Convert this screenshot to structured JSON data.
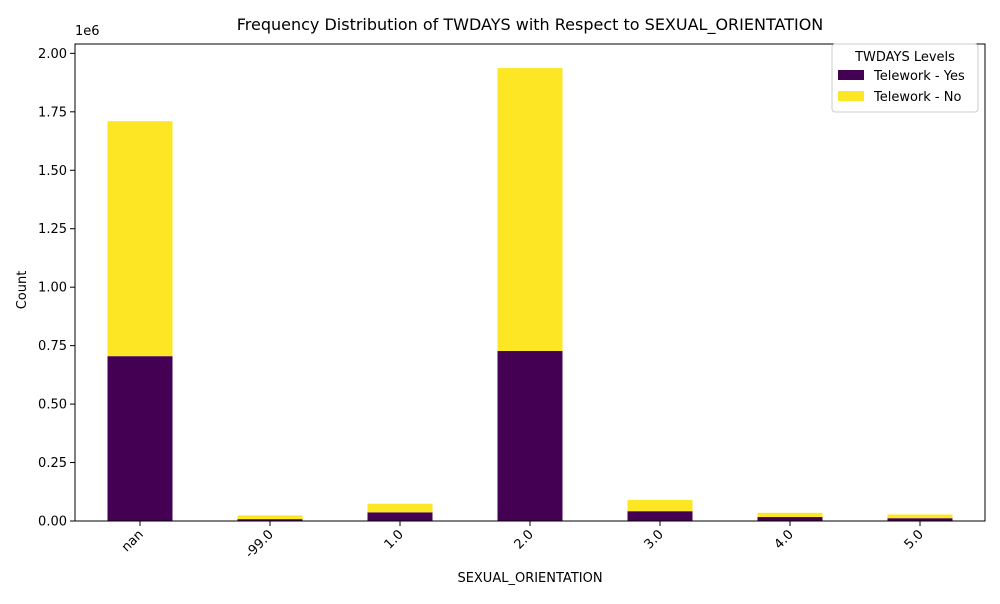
{
  "chart_data": {
    "type": "bar",
    "stacked": true,
    "title": "Frequency Distribution of TWDAYS with Respect to SEXUAL_ORIENTATION",
    "xlabel": "SEXUAL_ORIENTATION",
    "ylabel": "Count",
    "y_offset_label": "1e6",
    "ylim": [
      0,
      2.04
    ],
    "yticks": [
      "0.00",
      "0.25",
      "0.50",
      "0.75",
      "1.00",
      "1.25",
      "1.50",
      "1.75",
      "2.00"
    ],
    "ytick_values": [
      0,
      0.25,
      0.5,
      0.75,
      1.0,
      1.25,
      1.5,
      1.75,
      2.0
    ],
    "categories": [
      "nan",
      "-99.0",
      "1.0",
      "2.0",
      "3.0",
      "4.0",
      "5.0"
    ],
    "series": [
      {
        "name": "Telework - Yes",
        "color": "#440154",
        "values": [
          0.705,
          0.008,
          0.037,
          0.727,
          0.042,
          0.017,
          0.012
        ]
      },
      {
        "name": "Telework - No",
        "color": "#fde725",
        "values": [
          1.005,
          0.016,
          0.037,
          1.21,
          0.048,
          0.018,
          0.016
        ]
      }
    ],
    "legend": {
      "title": "TWDAYS Levels",
      "placement": "top-right"
    },
    "grid": false
  }
}
